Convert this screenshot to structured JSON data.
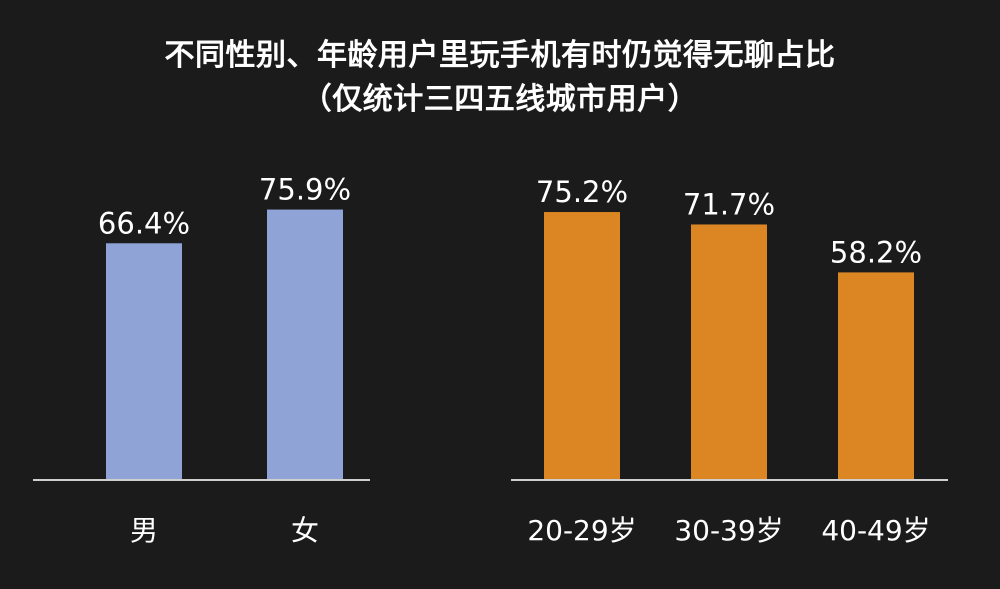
{
  "title": {
    "line1": "不同性别、年龄用户里玩手机有时仍觉得无聊占比",
    "line2": "（仅统计三四五线城市用户）"
  },
  "chart_data": [
    {
      "type": "bar",
      "categories": [
        "男",
        "女"
      ],
      "values": [
        66.4,
        75.9
      ],
      "labels": [
        "66.4%",
        "75.9%"
      ],
      "unit": "%",
      "color": "#8fa3d6",
      "ylim": [
        0,
        100
      ],
      "grid": false
    },
    {
      "type": "bar",
      "categories": [
        "20-29岁",
        "30-39岁",
        "40-49岁"
      ],
      "values": [
        75.2,
        71.7,
        58.2
      ],
      "labels": [
        "75.2%",
        "71.7%",
        "58.2%"
      ],
      "unit": "%",
      "color": "#dc8623",
      "ylim": [
        0,
        100
      ],
      "grid": false
    }
  ],
  "colors": {
    "background": "#1b1b1b",
    "text": "#ffffff",
    "axis": "#cfcfcf"
  }
}
